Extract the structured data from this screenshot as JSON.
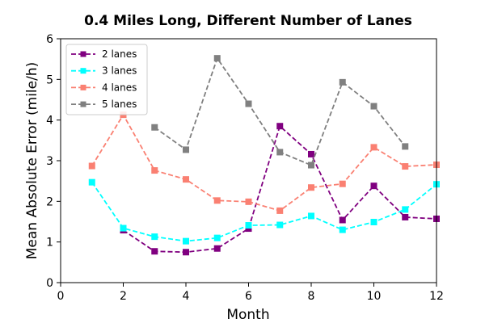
{
  "chart_data": {
    "type": "line",
    "title": "0.4 Miles Long, Different Number of Lanes",
    "xlabel": "Month",
    "ylabel": "Mean Absolute Error (mile/h)",
    "xlim": [
      0,
      12
    ],
    "ylim": [
      0,
      6
    ],
    "xticks": [
      "0",
      "2",
      "4",
      "6",
      "8",
      "10",
      "12"
    ],
    "yticks": [
      "0",
      "1",
      "2",
      "3",
      "4",
      "5",
      "6"
    ],
    "grid": false,
    "legend_position": "top-left",
    "line_style": "dashed",
    "marker": "square",
    "series": [
      {
        "name": "2 lanes",
        "color": "#800080",
        "points": [
          [
            2,
            1.29
          ],
          [
            3,
            0.77
          ],
          [
            4,
            0.75
          ],
          [
            5,
            0.84
          ],
          [
            6,
            1.33
          ],
          [
            7,
            3.85
          ],
          [
            8,
            3.16
          ],
          [
            9,
            1.54
          ],
          [
            10,
            2.38
          ],
          [
            11,
            1.61
          ],
          [
            12,
            1.57
          ]
        ]
      },
      {
        "name": "3 lanes",
        "color": "#00FFFF",
        "points": [
          [
            1,
            2.47
          ],
          [
            2,
            1.34
          ],
          [
            3,
            1.13
          ],
          [
            4,
            1.02
          ],
          [
            5,
            1.1
          ],
          [
            6,
            1.41
          ],
          [
            7,
            1.42
          ],
          [
            8,
            1.64
          ],
          [
            9,
            1.3
          ],
          [
            10,
            1.49
          ],
          [
            11,
            1.8
          ],
          [
            12,
            2.42
          ]
        ]
      },
      {
        "name": "4 lanes",
        "color": "#FA8072",
        "points": [
          [
            1,
            2.87
          ],
          [
            2,
            4.13
          ],
          [
            3,
            2.76
          ],
          [
            4,
            2.54
          ],
          [
            5,
            2.02
          ],
          [
            6,
            1.99
          ],
          [
            7,
            1.77
          ],
          [
            8,
            2.34
          ],
          [
            9,
            2.43
          ],
          [
            10,
            3.33
          ],
          [
            11,
            2.86
          ],
          [
            12,
            2.9
          ]
        ]
      },
      {
        "name": "5 lanes",
        "color": "#808080",
        "points": [
          [
            3,
            3.82
          ],
          [
            4,
            3.27
          ],
          [
            5,
            5.52
          ],
          [
            6,
            4.4
          ],
          [
            7,
            3.21
          ],
          [
            8,
            2.89
          ],
          [
            9,
            4.93
          ],
          [
            10,
            4.34
          ],
          [
            11,
            3.35
          ]
        ]
      }
    ]
  }
}
